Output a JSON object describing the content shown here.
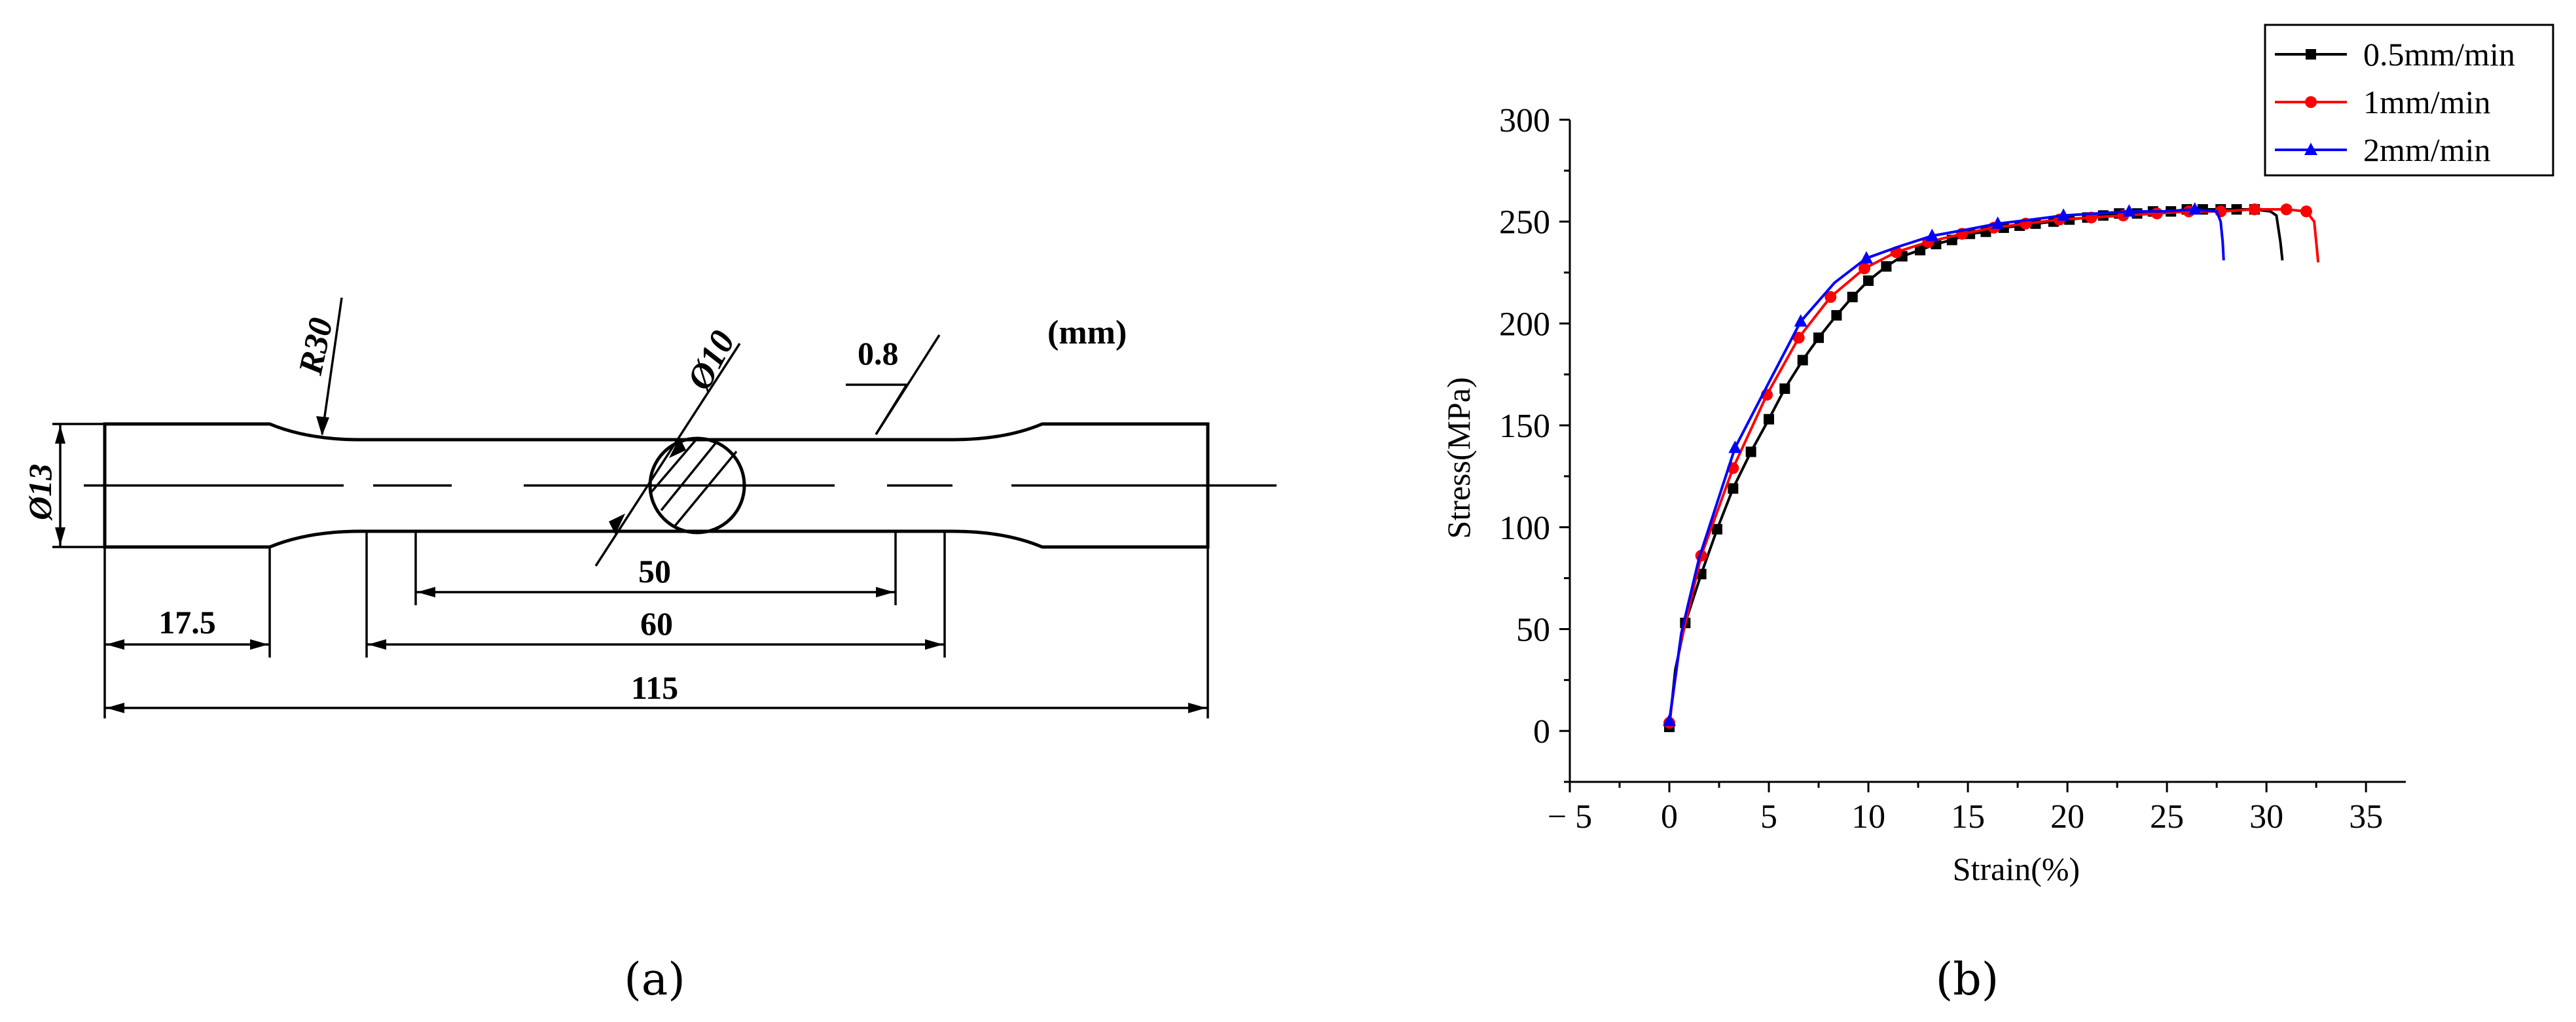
{
  "figure_a": {
    "caption": "(a)",
    "unit_label": "(mm)",
    "dimensions": {
      "radius": "R30",
      "diameter_center": "Ø10",
      "diameter_end": "Ø13",
      "roughness": "0.8",
      "gauge_length": "50",
      "reduced_length": "60",
      "grip_length": "17.5",
      "total_length": "115"
    }
  },
  "figure_b": {
    "caption": "(b)"
  },
  "chart_data": {
    "type": "line",
    "title": "",
    "xlabel": "Strain(%)",
    "ylabel": "Stress(MPa)",
    "xlim": [
      -5,
      37
    ],
    "ylim": [
      -25,
      300
    ],
    "x_ticks": [
      -5,
      0,
      5,
      10,
      15,
      20,
      25,
      30,
      35
    ],
    "x_tick_labels": [
      "− 5",
      "0",
      "5",
      "10",
      "15",
      "20",
      "25",
      "30",
      "35"
    ],
    "y_ticks": [
      0,
      50,
      100,
      150,
      200,
      250,
      300
    ],
    "y_tick_labels": [
      "0",
      "50",
      "100",
      "150",
      "200",
      "250",
      "300"
    ],
    "grid": false,
    "legend_position": "top-right",
    "series": [
      {
        "name": "0.5mm/min",
        "color": "#000000",
        "marker": "square",
        "points": [
          [
            0,
            2
          ],
          [
            0.3,
            30
          ],
          [
            0.8,
            53
          ],
          [
            1.6,
            77
          ],
          [
            2.4,
            99
          ],
          [
            3.2,
            119
          ],
          [
            4.1,
            137
          ],
          [
            5.0,
            153
          ],
          [
            5.8,
            168
          ],
          [
            6.7,
            182
          ],
          [
            7.5,
            193
          ],
          [
            8.4,
            204
          ],
          [
            9.2,
            213
          ],
          [
            10.0,
            221
          ],
          [
            10.9,
            228
          ],
          [
            11.7,
            233
          ],
          [
            12.6,
            236
          ],
          [
            13.4,
            239
          ],
          [
            14.2,
            241
          ],
          [
            15.1,
            244
          ],
          [
            15.9,
            245
          ],
          [
            16.8,
            247
          ],
          [
            17.6,
            248
          ],
          [
            18.4,
            249
          ],
          [
            19.3,
            250
          ],
          [
            20.1,
            251
          ],
          [
            21.0,
            252
          ],
          [
            21.8,
            253
          ],
          [
            22.6,
            254
          ],
          [
            23.5,
            254
          ],
          [
            24.3,
            255
          ],
          [
            25.2,
            255
          ],
          [
            26.0,
            256
          ],
          [
            26.8,
            256
          ],
          [
            27.7,
            256
          ],
          [
            28.5,
            256
          ],
          [
            29.4,
            256
          ],
          [
            30.2,
            255
          ],
          [
            30.5,
            253
          ],
          [
            30.7,
            240
          ],
          [
            30.8,
            231
          ]
        ],
        "marker_indices": [
          0,
          2,
          3,
          4,
          5,
          6,
          7,
          8,
          9,
          10,
          11,
          12,
          13,
          14,
          15,
          16,
          17,
          18,
          19,
          20,
          21,
          22,
          23,
          24,
          25,
          26,
          27,
          28,
          29,
          30,
          31,
          32,
          33,
          34,
          35,
          36
        ]
      },
      {
        "name": "1mm/min",
        "color": "#ff0000",
        "marker": "circle",
        "points": [
          [
            0,
            4
          ],
          [
            0.5,
            40
          ],
          [
            1.6,
            86
          ],
          [
            3.2,
            129
          ],
          [
            4.9,
            165
          ],
          [
            6.5,
            193
          ],
          [
            8.1,
            213
          ],
          [
            9.8,
            227
          ],
          [
            11.4,
            235
          ],
          [
            13.0,
            240
          ],
          [
            14.7,
            244
          ],
          [
            16.3,
            247
          ],
          [
            17.9,
            249
          ],
          [
            19.6,
            251
          ],
          [
            21.2,
            252
          ],
          [
            22.8,
            253
          ],
          [
            24.5,
            254
          ],
          [
            26.1,
            255
          ],
          [
            27.7,
            255
          ],
          [
            29.4,
            256
          ],
          [
            31.0,
            256
          ],
          [
            32.0,
            255
          ],
          [
            32.4,
            250
          ],
          [
            32.5,
            240
          ],
          [
            32.6,
            230
          ]
        ],
        "marker_indices": [
          0,
          2,
          3,
          4,
          5,
          6,
          7,
          8,
          9,
          10,
          11,
          12,
          13,
          14,
          15,
          16,
          17,
          18,
          19,
          20,
          21
        ]
      },
      {
        "name": "2mm/min",
        "color": "#0000ff",
        "marker": "triangle",
        "points": [
          [
            0,
            5
          ],
          [
            0.6,
            48
          ],
          [
            1.5,
            85
          ],
          [
            3.3,
            139
          ],
          [
            5.0,
            171
          ],
          [
            6.6,
            201
          ],
          [
            8.3,
            220
          ],
          [
            9.9,
            232
          ],
          [
            11.6,
            238
          ],
          [
            13.2,
            243
          ],
          [
            14.9,
            246
          ],
          [
            16.5,
            249
          ],
          [
            18.2,
            251
          ],
          [
            19.8,
            253
          ],
          [
            21.5,
            254
          ],
          [
            23.1,
            255
          ],
          [
            24.8,
            255
          ],
          [
            26.4,
            256
          ],
          [
            27.5,
            255
          ],
          [
            27.7,
            250
          ],
          [
            27.8,
            240
          ],
          [
            27.85,
            231
          ]
        ],
        "marker_indices": [
          0,
          3,
          5,
          7,
          9,
          11,
          13,
          15,
          17
        ]
      }
    ]
  }
}
